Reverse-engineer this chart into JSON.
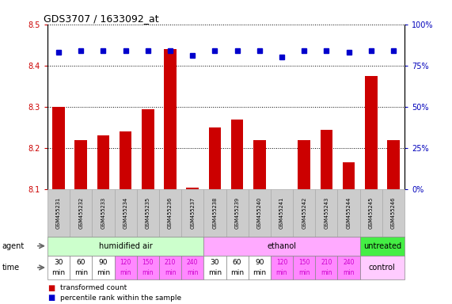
{
  "title": "GDS3707 / 1633092_at",
  "samples": [
    "GSM455231",
    "GSM455232",
    "GSM455233",
    "GSM455234",
    "GSM455235",
    "GSM455236",
    "GSM455237",
    "GSM455238",
    "GSM455239",
    "GSM455240",
    "GSM455241",
    "GSM455242",
    "GSM455243",
    "GSM455244",
    "GSM455245",
    "GSM455246"
  ],
  "transformed_count": [
    8.3,
    8.22,
    8.23,
    8.24,
    8.295,
    8.44,
    8.105,
    8.25,
    8.27,
    8.22,
    8.1,
    8.22,
    8.245,
    8.165,
    8.375,
    8.22
  ],
  "percentile_rank": [
    83,
    84,
    84,
    84,
    84,
    84,
    81,
    84,
    84,
    84,
    80,
    84,
    84,
    83,
    84,
    84
  ],
  "ylim_left": [
    8.1,
    8.5
  ],
  "ylim_right": [
    0,
    100
  ],
  "yticks_left": [
    8.1,
    8.2,
    8.3,
    8.4,
    8.5
  ],
  "yticks_right": [
    0,
    25,
    50,
    75,
    100
  ],
  "agent_groups": [
    {
      "label": "humidified air",
      "start": 0,
      "end": 7,
      "color": "#ccffcc"
    },
    {
      "label": "ethanol",
      "start": 7,
      "end": 14,
      "color": "#ffaaff"
    },
    {
      "label": "untreated",
      "start": 14,
      "end": 16,
      "color": "#44ee44"
    }
  ],
  "time_data": [
    {
      "val": "30",
      "unit": "min",
      "white": true
    },
    {
      "val": "60",
      "unit": "min",
      "white": true
    },
    {
      "val": "90",
      "unit": "min",
      "white": true
    },
    {
      "val": "120",
      "unit": "min",
      "white": false
    },
    {
      "val": "150",
      "unit": "min",
      "white": false
    },
    {
      "val": "210",
      "unit": "min",
      "white": false
    },
    {
      "val": "240",
      "unit": "min",
      "white": false
    },
    {
      "val": "30",
      "unit": "min",
      "white": true
    },
    {
      "val": "60",
      "unit": "min",
      "white": true
    },
    {
      "val": "90",
      "unit": "min",
      "white": true
    },
    {
      "val": "120",
      "unit": "min",
      "white": false
    },
    {
      "val": "150",
      "unit": "min",
      "white": false
    },
    {
      "val": "210",
      "unit": "min",
      "white": false
    },
    {
      "val": "240",
      "unit": "min",
      "white": false
    }
  ],
  "time_white_color": "#ffffff",
  "time_pink_color": "#ff88ff",
  "time_pink_text": "#cc00cc",
  "control_color": "#ffccff",
  "bar_color": "#cc0000",
  "dot_color": "#0000cc",
  "bar_width": 0.55,
  "ylabel_left_color": "#cc0000",
  "ylabel_right_color": "#0000bb",
  "legend_items": [
    {
      "color": "#cc0000",
      "label": "transformed count"
    },
    {
      "color": "#0000cc",
      "label": "percentile rank within the sample"
    }
  ],
  "sample_box_color": "#cccccc",
  "left_label_color": "#333333",
  "grid_color": "#000000"
}
